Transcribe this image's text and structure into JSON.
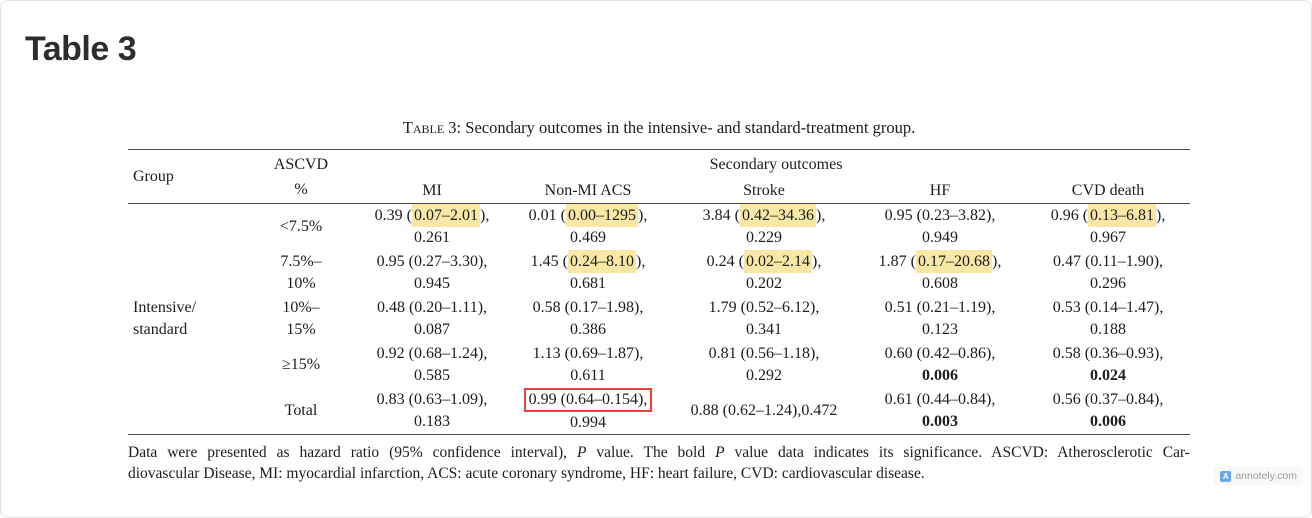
{
  "page": {
    "title": "Table 3"
  },
  "caption": {
    "label": "Table 3:",
    "text": "Secondary outcomes in the intensive- and standard-treatment group."
  },
  "colors": {
    "highlight_yellow": "#f8e7a5",
    "annotation_red": "#e8443b"
  },
  "table": {
    "col_group": "Group",
    "ascvd1": "ASCVD",
    "ascvd2": "%",
    "span_header": "Secondary outcomes",
    "outcome_headers": [
      "MI",
      "Non-MI ACS",
      "Stroke",
      "HF",
      "CVD death"
    ],
    "group1": "Intensive/",
    "group2": "standard",
    "rows": [
      {
        "ascvd1": "<7.5%",
        "ascvd2": "",
        "cells": [
          {
            "l1a": "0.39 (",
            "hl": "0.07–2.01",
            "l1b": "),",
            "l2": "0.261",
            "bold": false,
            "box": false
          },
          {
            "l1a": "0.01 (",
            "hl": "0.00–1295",
            "l1b": "),",
            "l2": "0.469",
            "bold": false,
            "box": false
          },
          {
            "l1a": "3.84 (",
            "hl": "0.42–34.36",
            "l1b": "),",
            "l2": "0.229",
            "bold": false,
            "box": false
          },
          {
            "l1a": "0.95 (0.23–3.82),",
            "hl": "",
            "l1b": "",
            "l2": "0.949",
            "bold": false,
            "box": false
          },
          {
            "l1a": "0.96 (",
            "hl": "0.13–6.81",
            "l1b": "),",
            "l2": "0.967",
            "bold": false,
            "box": false
          }
        ]
      },
      {
        "ascvd1": "7.5%–",
        "ascvd2": "10%",
        "cells": [
          {
            "l1a": "0.95 (0.27–3.30),",
            "hl": "",
            "l1b": "",
            "l2": "0.945",
            "bold": false,
            "box": false
          },
          {
            "l1a": "1.45 (",
            "hl": "0.24–8.10",
            "l1b": "),",
            "l2": "0.681",
            "bold": false,
            "box": false
          },
          {
            "l1a": "0.24 (",
            "hl": "0.02–2.14",
            "l1b": "),",
            "l2": "0.202",
            "bold": false,
            "box": false
          },
          {
            "l1a": "1.87 (",
            "hl": "0.17–20.68",
            "l1b": "),",
            "l2": "0.608",
            "bold": false,
            "box": false
          },
          {
            "l1a": "0.47 (0.11–1.90),",
            "hl": "",
            "l1b": "",
            "l2": "0.296",
            "bold": false,
            "box": false
          }
        ]
      },
      {
        "ascvd1": "10%–",
        "ascvd2": "15%",
        "cells": [
          {
            "l1a": "0.48 (0.20–1.11),",
            "hl": "",
            "l1b": "",
            "l2": "0.087",
            "bold": false,
            "box": false
          },
          {
            "l1a": "0.58 (0.17–1.98),",
            "hl": "",
            "l1b": "",
            "l2": "0.386",
            "bold": false,
            "box": false
          },
          {
            "l1a": "1.79 (0.52–6.12),",
            "hl": "",
            "l1b": "",
            "l2": "0.341",
            "bold": false,
            "box": false
          },
          {
            "l1a": "0.51 (0.21–1.19),",
            "hl": "",
            "l1b": "",
            "l2": "0.123",
            "bold": false,
            "box": false
          },
          {
            "l1a": "0.53 (0.14–1.47),",
            "hl": "",
            "l1b": "",
            "l2": "0.188",
            "bold": false,
            "box": false
          }
        ]
      },
      {
        "ascvd1": "≥15%",
        "ascvd2": "",
        "cells": [
          {
            "l1a": "0.92 (0.68–1.24),",
            "hl": "",
            "l1b": "",
            "l2": "0.585",
            "bold": false,
            "box": false
          },
          {
            "l1a": "1.13 (0.69–1.87),",
            "hl": "",
            "l1b": "",
            "l2": "0.611",
            "bold": false,
            "box": false
          },
          {
            "l1a": "0.81 (0.56–1.18),",
            "hl": "",
            "l1b": "",
            "l2": "0.292",
            "bold": false,
            "box": false
          },
          {
            "l1a": "0.60 (0.42–0.86),",
            "hl": "",
            "l1b": "",
            "l2": "0.006",
            "bold": true,
            "box": false
          },
          {
            "l1a": "0.58 (0.36–0.93),",
            "hl": "",
            "l1b": "",
            "l2": "0.024",
            "bold": true,
            "box": false
          }
        ]
      },
      {
        "ascvd1": "Total",
        "ascvd2": "",
        "cells": [
          {
            "l1a": "0.83 (0.63–1.09),",
            "hl": "",
            "l1b": "",
            "l2": "0.183",
            "bold": false,
            "box": false
          },
          {
            "l1a": "0.99 (0.64–0.154),",
            "hl": "",
            "l1b": "",
            "l2": "0.994",
            "bold": false,
            "box": true
          },
          {
            "l1a": "0.88 (0.62–1.24),0.472",
            "hl": "",
            "l1b": "",
            "l2": "",
            "bold": false,
            "box": false
          },
          {
            "l1a": "0.61 (0.44–0.84),",
            "hl": "",
            "l1b": "",
            "l2": "0.003",
            "bold": true,
            "box": false
          },
          {
            "l1a": "0.56 (0.37–0.84),",
            "hl": "",
            "l1b": "",
            "l2": "0.006",
            "bold": true,
            "box": false
          }
        ]
      }
    ]
  },
  "footnote": {
    "f1": "Data were presented as hazard ratio (95% confidence interval), ",
    "f2": "P",
    "f3": " value. The bold ",
    "f4": "P",
    "f5": " value data indicates its significance. ASCVD: Atherosclerotic Car-",
    "line2": "diovascular Disease, MI: myocardial infarction, ACS: acute coronary syndrome, HF: heart failure, CVD: cardiovascular disease."
  },
  "watermark": {
    "label": "annotely.com",
    "icon_letter": "A"
  }
}
